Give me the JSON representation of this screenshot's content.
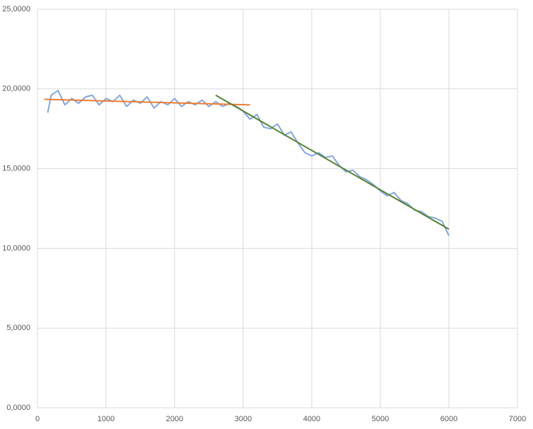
{
  "chart_data": {
    "type": "line",
    "series": [
      {
        "color": "#86a6dc",
        "x": [
          150,
          200,
          300,
          400,
          500,
          600,
          700,
          800,
          900,
          1000,
          1100,
          1200,
          1300,
          1400,
          1500,
          1600,
          1700,
          1800,
          1900,
          2000,
          2100,
          2200,
          2300,
          2400,
          2500,
          2600,
          2700,
          2800,
          2900,
          3000,
          3100,
          3200,
          3300,
          3400,
          3500,
          3600,
          3700,
          3800,
          3900,
          4000,
          4100,
          4200,
          4300,
          4400,
          4500,
          4600,
          4700,
          4800,
          4900,
          5000,
          5100,
          5200,
          5300,
          5400,
          5500,
          5600,
          5700,
          5800,
          5900,
          6000
        ],
        "values": [
          18.5,
          19.6,
          19.9,
          19.0,
          19.4,
          19.1,
          19.5,
          19.6,
          19.0,
          19.4,
          19.2,
          19.6,
          18.9,
          19.3,
          19.1,
          19.5,
          18.8,
          19.2,
          19.0,
          19.4,
          18.9,
          19.2,
          19.0,
          19.3,
          18.9,
          19.2,
          18.9,
          19.1,
          18.9,
          18.6,
          18.1,
          18.4,
          17.6,
          17.5,
          17.8,
          17.1,
          17.3,
          16.6,
          16.0,
          15.8,
          16.0,
          15.7,
          15.8,
          15.2,
          14.8,
          14.9,
          14.5,
          14.3,
          14.0,
          13.6,
          13.3,
          13.5,
          13.0,
          12.8,
          12.4,
          12.3,
          12.0,
          11.9,
          11.7,
          10.8
        ]
      },
      {
        "color": "#ed7d31",
        "x": [
          100,
          3100
        ],
        "values": [
          19.35,
          19.0
        ]
      },
      {
        "color": "#548235",
        "x": [
          2600,
          6000
        ],
        "values": [
          19.6,
          11.2
        ]
      }
    ],
    "xlim": [
      0,
      7000
    ],
    "xticks": [
      0,
      1000,
      2000,
      3000,
      4000,
      5000,
      6000,
      7000
    ],
    "ylim": [
      0,
      25
    ],
    "yticks": [
      {
        "value": 0,
        "label": "0,0000"
      },
      {
        "value": 5,
        "label": "5,0000"
      },
      {
        "value": 10,
        "label": "10,0000"
      },
      {
        "value": 15,
        "label": "15,0000"
      },
      {
        "value": 20,
        "label": "20,0000"
      },
      {
        "value": 25,
        "label": "25,0000"
      }
    ],
    "grid": true
  }
}
